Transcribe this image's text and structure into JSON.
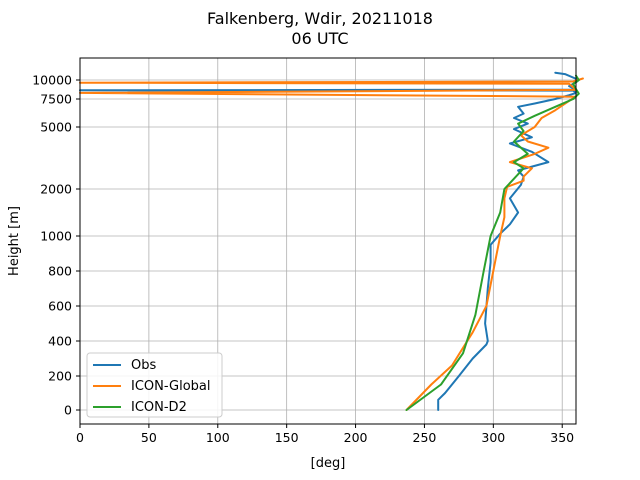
{
  "title_line1": "Falkenberg, Wdir, 20211018",
  "title_line2": "06 UTC",
  "chart_data": {
    "type": "line",
    "title": "Falkenberg, Wdir, 20211018\n06 UTC",
    "xlabel": "[deg]",
    "ylabel": "Height [m]",
    "xlim": [
      0,
      360
    ],
    "ylim": [
      -90,
      11500
    ],
    "x_ticks": [
      0,
      50,
      100,
      150,
      200,
      250,
      300,
      350
    ],
    "y_ticks": [
      0,
      200,
      400,
      600,
      800,
      1000,
      2000,
      5000,
      7500,
      10000
    ],
    "y_scale": "piecewise",
    "grid": true,
    "legend_position": "lower-left",
    "series": [
      {
        "name": "Obs",
        "color": "#1f77b4",
        "points": [
          [
            260,
            0
          ],
          [
            260,
            60
          ],
          [
            265,
            100
          ],
          [
            275,
            200
          ],
          [
            285,
            300
          ],
          [
            295,
            380
          ],
          [
            296,
            400
          ],
          [
            294,
            500
          ],
          [
            296,
            700
          ],
          [
            298,
            850
          ],
          [
            298,
            950
          ],
          [
            305,
            1050
          ],
          [
            312,
            1250
          ],
          [
            318,
            1500
          ],
          [
            312,
            1800
          ],
          [
            320,
            2200
          ],
          [
            322,
            2600
          ],
          [
            318,
            2900
          ],
          [
            340,
            3300
          ],
          [
            328,
            3800
          ],
          [
            312,
            4200
          ],
          [
            328,
            4500
          ],
          [
            315,
            4900
          ],
          [
            325,
            5300
          ],
          [
            315,
            5800
          ],
          [
            322,
            6200
          ],
          [
            318,
            6800
          ],
          [
            330,
            7100
          ],
          [
            345,
            7500
          ],
          [
            355,
            8000
          ],
          [
            360,
            8300
          ],
          [
            358,
            8600
          ],
          [
            0,
            8650
          ],
          [
            360,
            8720
          ],
          [
            355,
            9200
          ],
          [
            360,
            9700
          ],
          [
            362,
            10000
          ],
          [
            352,
            10400
          ],
          [
            345,
            10500
          ]
        ]
      },
      {
        "name": "ICON-Global",
        "color": "#ff7f0e",
        "points": [
          [
            237,
            0
          ],
          [
            255,
            150
          ],
          [
            270,
            260
          ],
          [
            285,
            450
          ],
          [
            295,
            600
          ],
          [
            300,
            800
          ],
          [
            305,
            1000
          ],
          [
            308,
            1400
          ],
          [
            308,
            1800
          ],
          [
            310,
            2100
          ],
          [
            322,
            2400
          ],
          [
            322,
            2600
          ],
          [
            328,
            3000
          ],
          [
            312,
            3300
          ],
          [
            330,
            3700
          ],
          [
            340,
            4000
          ],
          [
            325,
            4300
          ],
          [
            320,
            4600
          ],
          [
            330,
            5000
          ],
          [
            335,
            5800
          ],
          [
            345,
            6500
          ],
          [
            357,
            7500
          ],
          [
            360,
            7800
          ],
          [
            0,
            8300
          ],
          [
            360,
            8700
          ],
          [
            355,
            9500
          ],
          [
            0,
            9650
          ],
          [
            358,
            9800
          ],
          [
            365,
            10100
          ]
        ]
      },
      {
        "name": "ICON-D2",
        "color": "#2ca02c",
        "points": [
          [
            237,
            0
          ],
          [
            262,
            150
          ],
          [
            278,
            330
          ],
          [
            287,
            550
          ],
          [
            293,
            800
          ],
          [
            298,
            1000
          ],
          [
            305,
            1500
          ],
          [
            308,
            2000
          ],
          [
            315,
            2500
          ],
          [
            322,
            3000
          ],
          [
            315,
            3300
          ],
          [
            325,
            3700
          ],
          [
            315,
            4300
          ],
          [
            322,
            4800
          ],
          [
            318,
            5300
          ],
          [
            330,
            6000
          ],
          [
            345,
            6800
          ],
          [
            358,
            7500
          ],
          [
            362,
            8200
          ],
          [
            360,
            8800
          ],
          [
            358,
            9500
          ],
          [
            362,
            10000
          ],
          [
            360,
            10300
          ]
        ]
      }
    ]
  }
}
